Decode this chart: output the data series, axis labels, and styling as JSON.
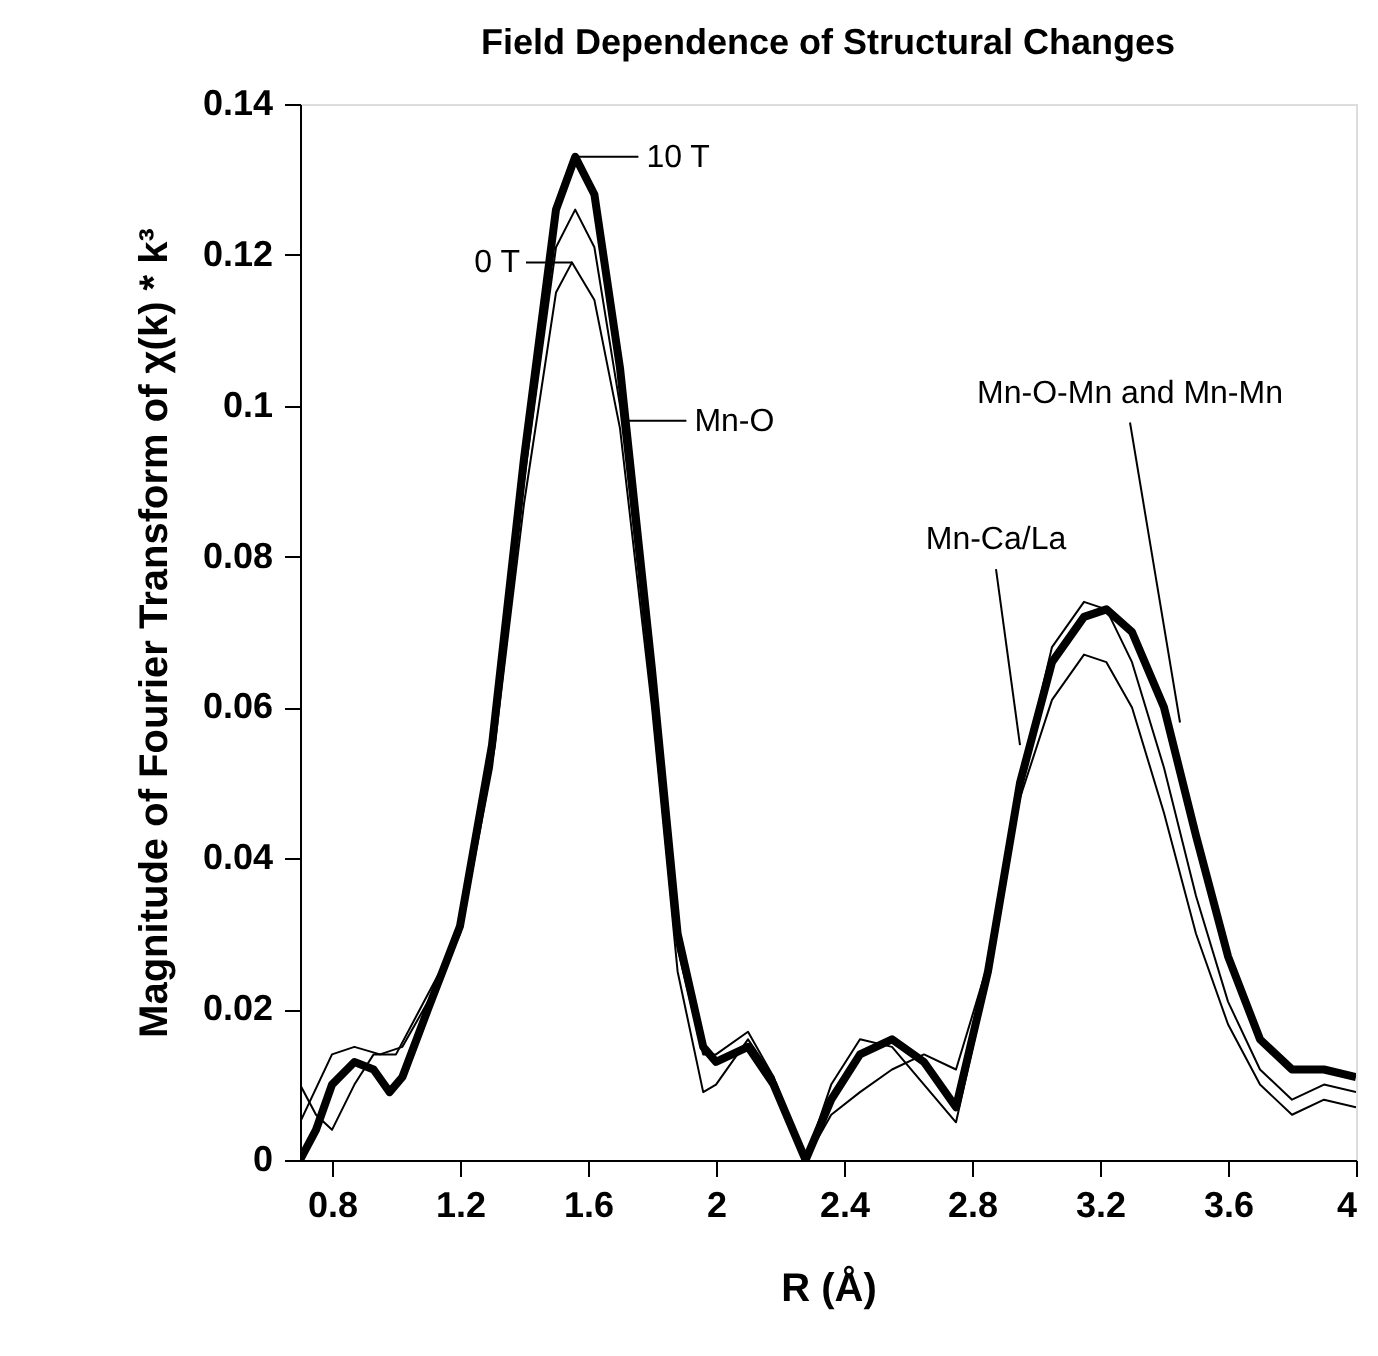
{
  "chart_data": {
    "type": "line",
    "title": "Field Dependence of Structural Changes",
    "xlabel": "R (Å)",
    "ylabel": "Magnitude of Fourier Transform of χ(k)  * k³",
    "xlim": [
      0.7,
      4
    ],
    "xticks": [
      0.8,
      1.2,
      1.6,
      2,
      2.4,
      2.8,
      3.2,
      3.6,
      4
    ],
    "ylim": [
      0,
      0.14
    ],
    "yticks": [
      0,
      0.02,
      0.04,
      0.06,
      0.08,
      0.1,
      0.12,
      0.14
    ],
    "grid": false,
    "marker": "none",
    "line_style": "solid",
    "series": [
      {
        "color": "#000000",
        "x": [
          0.7,
          0.75,
          0.8,
          0.87,
          0.93,
          1.0,
          1.1,
          1.2,
          1.3,
          1.4,
          1.5,
          1.55,
          1.62,
          1.7,
          1.8,
          1.88,
          1.96,
          2.0,
          2.1,
          2.18,
          2.28,
          2.36,
          2.45,
          2.55,
          2.65,
          2.75,
          2.85,
          2.95,
          3.05,
          3.15,
          3.22,
          3.3,
          3.4,
          3.5,
          3.6,
          3.7,
          3.8,
          3.9,
          4.0
        ],
        "values": [
          0.01,
          0.006,
          0.004,
          0.01,
          0.014,
          0.014,
          0.022,
          0.03,
          0.052,
          0.087,
          0.115,
          0.119,
          0.114,
          0.097,
          0.06,
          0.025,
          0.009,
          0.01,
          0.016,
          0.011,
          0.0,
          0.006,
          0.009,
          0.012,
          0.014,
          0.012,
          0.026,
          0.048,
          0.061,
          0.067,
          0.066,
          0.06,
          0.046,
          0.03,
          0.018,
          0.01,
          0.006,
          0.008,
          0.007
        ]
      },
      {
        "color": "#000000",
        "x": [
          0.7,
          0.8,
          0.87,
          0.95,
          1.02,
          1.1,
          1.2,
          1.3,
          1.4,
          1.5,
          1.56,
          1.62,
          1.7,
          1.8,
          1.88,
          1.96,
          2.0,
          2.1,
          2.18,
          2.28,
          2.36,
          2.45,
          2.55,
          2.65,
          2.75,
          2.85,
          2.95,
          3.05,
          3.15,
          3.22,
          3.3,
          3.4,
          3.5,
          3.6,
          3.7,
          3.8,
          3.9,
          4.0
        ],
        "values": [
          0.005,
          0.014,
          0.015,
          0.014,
          0.015,
          0.021,
          0.03,
          0.053,
          0.09,
          0.121,
          0.126,
          0.121,
          0.1,
          0.062,
          0.028,
          0.014,
          0.014,
          0.017,
          0.011,
          0.0,
          0.01,
          0.016,
          0.015,
          0.01,
          0.005,
          0.024,
          0.05,
          0.068,
          0.074,
          0.073,
          0.066,
          0.052,
          0.035,
          0.021,
          0.012,
          0.008,
          0.01,
          0.009
        ]
      },
      {
        "color": "#000000",
        "x": [
          0.7,
          0.75,
          0.8,
          0.87,
          0.93,
          0.98,
          1.02,
          1.1,
          1.2,
          1.3,
          1.4,
          1.5,
          1.56,
          1.62,
          1.7,
          1.8,
          1.88,
          1.96,
          2.0,
          2.1,
          2.18,
          2.28,
          2.36,
          2.45,
          2.55,
          2.65,
          2.75,
          2.85,
          2.95,
          3.05,
          3.15,
          3.22,
          3.3,
          3.4,
          3.5,
          3.6,
          3.7,
          3.8,
          3.9,
          4.0
        ],
        "values": [
          0.0,
          0.004,
          0.01,
          0.013,
          0.012,
          0.009,
          0.011,
          0.02,
          0.031,
          0.055,
          0.093,
          0.126,
          0.133,
          0.128,
          0.105,
          0.065,
          0.03,
          0.015,
          0.013,
          0.015,
          0.01,
          0.0,
          0.008,
          0.014,
          0.016,
          0.013,
          0.007,
          0.025,
          0.05,
          0.066,
          0.072,
          0.073,
          0.07,
          0.06,
          0.043,
          0.027,
          0.016,
          0.012,
          0.012,
          0.011
        ]
      }
    ],
    "annotations": [
      {
        "text": "10 T",
        "x": 1.57,
        "y": 0.133
      },
      {
        "text": "0 T",
        "x": 1.55,
        "y": 0.119
      },
      {
        "text": "Mn-O",
        "x": 1.72,
        "y": 0.098
      },
      {
        "text": "Mn-Ca/La",
        "x": 2.95,
        "y": 0.055
      },
      {
        "text": "Mn-O-Mn and Mn-Mn",
        "x": 3.45,
        "y": 0.058
      }
    ]
  }
}
